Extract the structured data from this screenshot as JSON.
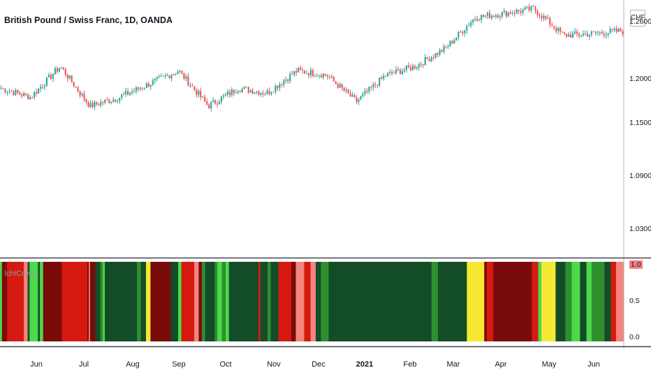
{
  "title": "British Pound / Swiss Franc, 1D, OANDA",
  "currency_badge": "CHF",
  "indicator_name": "IchiCross",
  "colors": {
    "up": "#26a69a",
    "down": "#ef5350",
    "strong_bull": "#124d28",
    "bull": "#2f8f2f",
    "light_bull": "#4cd94c",
    "neutral": "#f5e934",
    "light_bear": "#f2857d",
    "bear": "#d61a0f",
    "strong_bear": "#7a0b0b"
  },
  "chart_data": [
    {
      "type": "candlestick",
      "title": "British Pound / Swiss Franc, 1D, OANDA",
      "y_axis_labels": [
        "1.26000",
        "1.20000",
        "1.15000",
        "1.09000",
        "1.03000"
      ],
      "x_axis_labels": [
        "Jun",
        "Jul",
        "Aug",
        "Sep",
        "Oct",
        "Nov",
        "Dec",
        "2021",
        "Feb",
        "Mar",
        "Apr",
        "May",
        "Jun"
      ],
      "ylim": [
        1.0,
        1.29
      ],
      "series": [
        {
          "period": "2020-05 late",
          "close": 1.19
        },
        {
          "period": "2020-06 start",
          "close": 1.18
        },
        {
          "period": "2020-06 mid",
          "close": 1.215
        },
        {
          "period": "2020-06 end",
          "close": 1.17
        },
        {
          "period": "2020-07",
          "close": 1.18
        },
        {
          "period": "2020-08",
          "close": 1.195
        },
        {
          "period": "2020-09 start",
          "close": 1.21
        },
        {
          "period": "2020-09 mid",
          "close": 1.17
        },
        {
          "period": "2020-10",
          "close": 1.19
        },
        {
          "period": "2020-11 start",
          "close": 1.185
        },
        {
          "period": "2020-11 mid",
          "close": 1.21
        },
        {
          "period": "2020-12 start",
          "close": 1.205
        },
        {
          "period": "2020-12 mid",
          "close": 1.175
        },
        {
          "period": "2021-01",
          "close": 1.205
        },
        {
          "period": "2021-02 start",
          "close": 1.215
        },
        {
          "period": "2021-02 end",
          "close": 1.235
        },
        {
          "period": "2021-03 start",
          "close": 1.27
        },
        {
          "period": "2021-03 end",
          "close": 1.275
        },
        {
          "period": "2021-04 start",
          "close": 1.28
        },
        {
          "period": "2021-04 mid",
          "close": 1.25
        },
        {
          "period": "2021-05",
          "close": 1.252
        },
        {
          "period": "2021-06",
          "close": 1.255
        }
      ]
    },
    {
      "type": "heatmap",
      "name": "IchiCross",
      "y_axis_labels": [
        "1.0",
        "0.5",
        "0.0"
      ],
      "ylim": [
        0,
        1
      ]
    }
  ]
}
